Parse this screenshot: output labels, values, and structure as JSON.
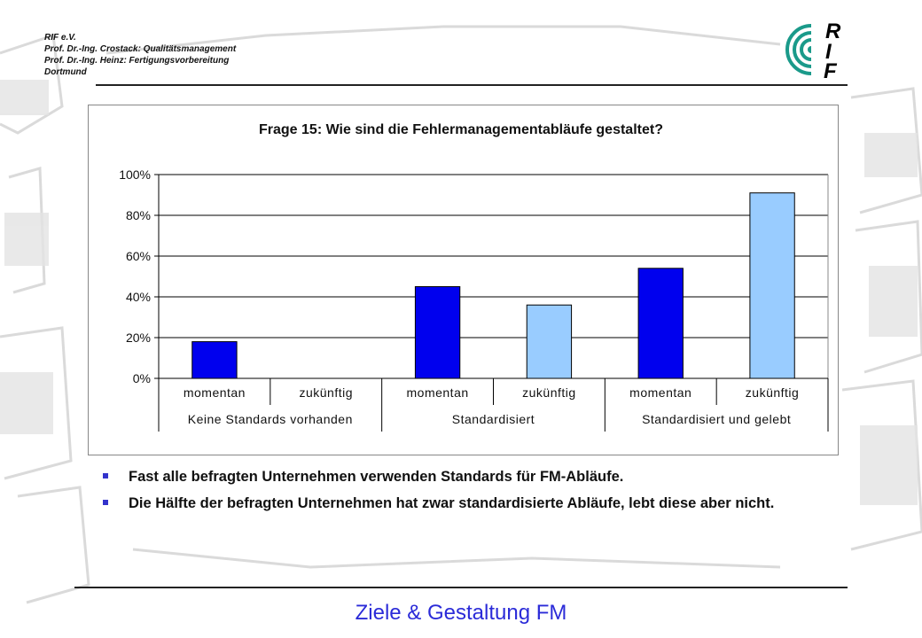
{
  "header": {
    "lines": [
      "RIF e.V.",
      "Prof. Dr.-Ing. Crostack: Qualitätsmanagement",
      "Prof. Dr.-Ing. Heinz: Fertigungsvorbereitung",
      "Dortmund"
    ]
  },
  "logo": {
    "letters": [
      "R",
      "I",
      "F"
    ]
  },
  "colors": {
    "momentan": "#0000ee",
    "zukuenftig": "#99ccff",
    "accent": "#2b2bd8",
    "logo_teal": "#1a9a8a"
  },
  "chart_data": {
    "type": "bar",
    "title": "Frage 15: Wie sind die Fehlermanagementabläufe gestaltet?",
    "categories": [
      {
        "label": "momentan",
        "group": "Keine Standards vorhanden"
      },
      {
        "label": "zukünftig",
        "group": "Keine Standards vorhanden"
      },
      {
        "label": "momentan",
        "group": "Standardisiert"
      },
      {
        "label": "zukünftig",
        "group": "Standardisiert"
      },
      {
        "label": "momentan",
        "group": "Standardisiert und gelebt"
      },
      {
        "label": "zukünftig",
        "group": "Standardisiert und gelebt"
      }
    ],
    "groups": [
      "Keine Standards vorhanden",
      "Standardisiert",
      "Standardisiert und gelebt"
    ],
    "values": [
      18,
      0,
      45,
      36,
      54,
      91
    ],
    "ylim": [
      0,
      100
    ],
    "yticks": [
      "0%",
      "20%",
      "40%",
      "60%",
      "80%",
      "100%"
    ],
    "grid": true,
    "legend": "none"
  },
  "bullets": [
    "Fast alle befragten Unternehmen verwenden Standards für FM-Abläufe.",
    "Die Hälfte der befragten Unternehmen hat zwar standardisierte Abläufe, lebt diese aber nicht."
  ],
  "footer": {
    "title": "Ziele & Gestaltung FM"
  }
}
